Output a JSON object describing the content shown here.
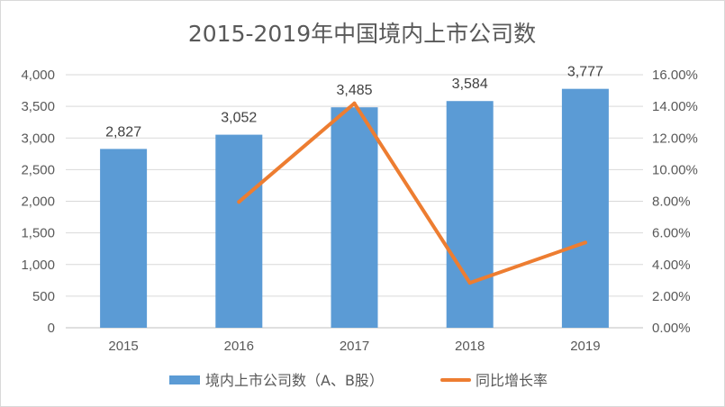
{
  "chart_data": {
    "type": "bar",
    "title": "2015-2019年中国境内上市公司数",
    "categories": [
      "2015",
      "2016",
      "2017",
      "2018",
      "2019"
    ],
    "series": [
      {
        "name": "境内上市公司数（A、B股）",
        "type": "bar",
        "axis": "left",
        "color": "#5b9bd5",
        "values": [
          2827,
          3052,
          3485,
          3584,
          3777
        ],
        "data_labels": [
          "2,827",
          "3,052",
          "3,485",
          "3,584",
          "3,777"
        ]
      },
      {
        "name": "同比增长率",
        "type": "line",
        "axis": "right",
        "color": "#ed7d31",
        "values": [
          null,
          7.96,
          14.19,
          2.84,
          5.39
        ]
      }
    ],
    "y_left": {
      "min": 0,
      "max": 4000,
      "ticks": [
        0,
        500,
        1000,
        1500,
        2000,
        2500,
        3000,
        3500,
        4000
      ],
      "tick_labels": [
        "0",
        "500",
        "1,000",
        "1,500",
        "2,000",
        "2,500",
        "3,000",
        "3,500",
        "4,000"
      ]
    },
    "y_right": {
      "min": 0,
      "max": 16,
      "ticks": [
        0,
        2,
        4,
        6,
        8,
        10,
        12,
        14,
        16
      ],
      "tick_labels": [
        "0.00%",
        "2.00%",
        "4.00%",
        "6.00%",
        "8.00%",
        "10.00%",
        "12.00%",
        "14.00%",
        "16.00%"
      ]
    },
    "grid": true,
    "legend_position": "bottom",
    "xlabel": "",
    "ylabel": ""
  }
}
